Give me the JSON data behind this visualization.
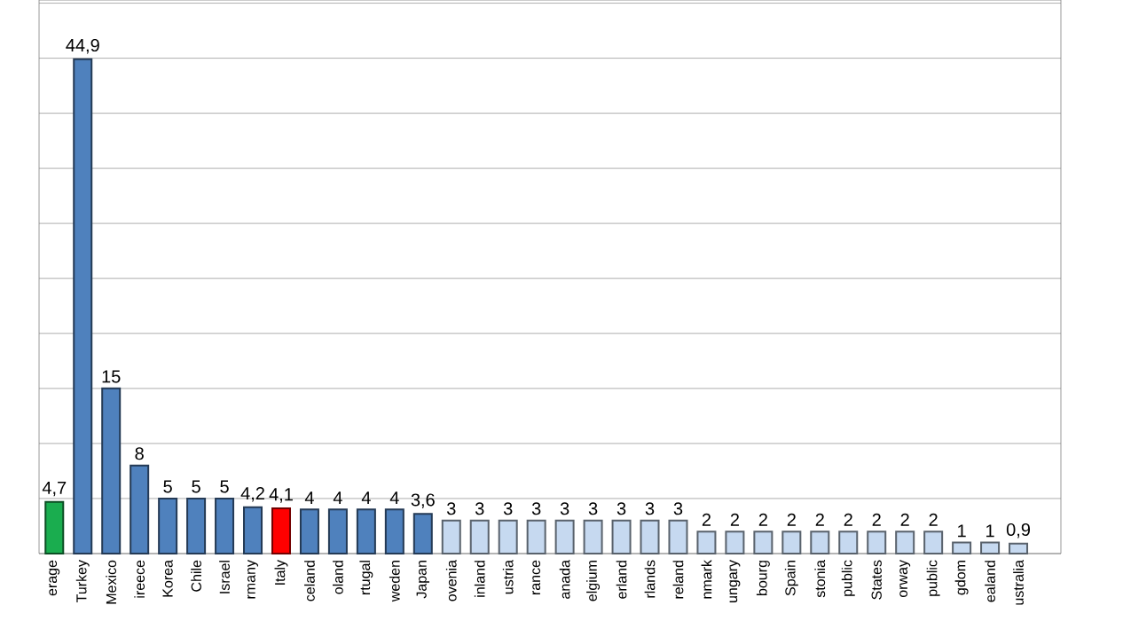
{
  "chart_data": {
    "type": "bar",
    "tick_labels": "x",
    "grid": "y",
    "value_labels": [
      "4,7",
      "44,9",
      "15",
      "8",
      "5",
      "5",
      "5",
      "4,2",
      "4,1",
      "4",
      "4",
      "4",
      "4",
      "3,6",
      "3",
      "3",
      "3",
      "3",
      "3",
      "3",
      "3",
      "3",
      "3",
      "2",
      "2",
      "2",
      "2",
      "2",
      "2",
      "2",
      "2",
      "2",
      "1",
      "1",
      "0,9"
    ],
    "categories": [
      "erage",
      "Turkey",
      "Mexico",
      "ireece",
      "Korea",
      "Chile",
      "Israel",
      "rmany",
      "Italy",
      "celand",
      "oland",
      "rtugal",
      "weden",
      "Japan",
      "ovenia",
      "inland",
      "ustria",
      "rance",
      "anada",
      "elgium",
      "erland",
      "rlands",
      "reland",
      "nmark",
      "ungary",
      "bourg",
      "Spain",
      "stonia",
      "public",
      "States",
      "orway",
      "public",
      "gdom",
      "ealand",
      "ustralia"
    ],
    "values": [
      4.7,
      44.9,
      15,
      8,
      5,
      5,
      5,
      4.2,
      4.1,
      4,
      4,
      4,
      4,
      3.6,
      3,
      3,
      3,
      3,
      3,
      3,
      3,
      3,
      3,
      2,
      2,
      2,
      2,
      2,
      2,
      2,
      2,
      2,
      1,
      1,
      0.9
    ],
    "colors": [
      "#1aad4f",
      "#4f81bd",
      "#4f81bd",
      "#4f81bd",
      "#4f81bd",
      "#4f81bd",
      "#4f81bd",
      "#4f81bd",
      "#ff0000",
      "#4f81bd",
      "#4f81bd",
      "#4f81bd",
      "#4f81bd",
      "#4f81bd",
      "#c6d9f0",
      "#c6d9f0",
      "#c6d9f0",
      "#c6d9f0",
      "#c6d9f0",
      "#c6d9f0",
      "#c6d9f0",
      "#c6d9f0",
      "#c6d9f0",
      "#c6d9f0",
      "#c6d9f0",
      "#c6d9f0",
      "#c6d9f0",
      "#c6d9f0",
      "#c6d9f0",
      "#c6d9f0",
      "#c6d9f0",
      "#c6d9f0",
      "#c6d9f0",
      "#c6d9f0",
      "#c6d9f0"
    ]
  }
}
